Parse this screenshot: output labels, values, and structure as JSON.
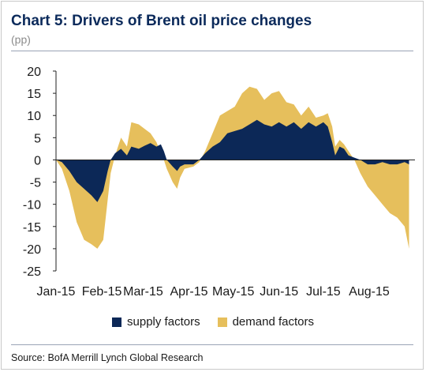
{
  "header": {
    "title": "Chart 5: Drivers of Brent oil price changes",
    "unit": "(pp)"
  },
  "source": "Source: BofA Merrill Lynch Global Research",
  "colors": {
    "supply": "#0c2857",
    "demand": "#e6bf5c",
    "title": "#0b2a5b"
  },
  "chart_data": {
    "type": "area",
    "stacked": true,
    "title": "Chart 5: Drivers of Brent oil price changes",
    "ylabel": "(pp)",
    "ylim": [
      -25,
      20
    ],
    "yticks": [
      20,
      15,
      10,
      5,
      0,
      -5,
      -10,
      -15,
      -20,
      -25
    ],
    "xlim": [
      "2015-01-01",
      "2015-09-01"
    ],
    "xticks": [
      {
        "date": "2015-01-01",
        "label": "Jan-15"
      },
      {
        "date": "2015-02-01",
        "label": "Feb-15"
      },
      {
        "date": "2015-03-01",
        "label": "Mar-15"
      },
      {
        "date": "2015-04-01",
        "label": "Apr-15"
      },
      {
        "date": "2015-05-01",
        "label": "May-15"
      },
      {
        "date": "2015-06-01",
        "label": "Jun-15"
      },
      {
        "date": "2015-07-01",
        "label": "Jul-15"
      },
      {
        "date": "2015-08-01",
        "label": "Aug-15"
      }
    ],
    "grid": false,
    "legend_position": "bottom",
    "series": [
      {
        "name": "supply factors",
        "points": [
          [
            "2015-01-01",
            0
          ],
          [
            "2015-01-05",
            -0.5
          ],
          [
            "2015-01-10",
            -2.5
          ],
          [
            "2015-01-15",
            -5
          ],
          [
            "2015-01-20",
            -6.5
          ],
          [
            "2015-01-25",
            -8
          ],
          [
            "2015-01-29",
            -9.5
          ],
          [
            "2015-02-02",
            -7
          ],
          [
            "2015-02-05",
            -2.5
          ],
          [
            "2015-02-07",
            0
          ],
          [
            "2015-02-10",
            1.5
          ],
          [
            "2015-02-14",
            2.5
          ],
          [
            "2015-02-18",
            1
          ],
          [
            "2015-02-21",
            3
          ],
          [
            "2015-02-26",
            2.5
          ],
          [
            "2015-03-02",
            3.2
          ],
          [
            "2015-03-06",
            3.8
          ],
          [
            "2015-03-10",
            3
          ],
          [
            "2015-03-13",
            3.5
          ],
          [
            "2015-03-15",
            2
          ],
          [
            "2015-03-17",
            0
          ],
          [
            "2015-03-21",
            -1.5
          ],
          [
            "2015-03-24",
            -2.5
          ],
          [
            "2015-03-26",
            -1.5
          ],
          [
            "2015-03-29",
            -1
          ],
          [
            "2015-04-04",
            -1
          ],
          [
            "2015-04-08",
            0
          ],
          [
            "2015-04-12",
            1.5
          ],
          [
            "2015-04-17",
            3
          ],
          [
            "2015-04-22",
            4
          ],
          [
            "2015-04-27",
            6
          ],
          [
            "2015-05-02",
            6.5
          ],
          [
            "2015-05-07",
            7
          ],
          [
            "2015-05-12",
            8
          ],
          [
            "2015-05-17",
            9
          ],
          [
            "2015-05-22",
            8
          ],
          [
            "2015-05-27",
            7.5
          ],
          [
            "2015-06-01",
            8.5
          ],
          [
            "2015-06-06",
            7.5
          ],
          [
            "2015-06-11",
            8.5
          ],
          [
            "2015-06-16",
            7
          ],
          [
            "2015-06-21",
            8.5
          ],
          [
            "2015-06-26",
            7.5
          ],
          [
            "2015-07-01",
            8.5
          ],
          [
            "2015-07-04",
            7.5
          ],
          [
            "2015-07-07",
            4
          ],
          [
            "2015-07-09",
            1
          ],
          [
            "2015-07-12",
            3
          ],
          [
            "2015-07-15",
            2.5
          ],
          [
            "2015-07-18",
            1
          ],
          [
            "2015-07-22",
            0.5
          ],
          [
            "2015-07-26",
            0
          ],
          [
            "2015-07-31",
            -1
          ],
          [
            "2015-08-05",
            -1
          ],
          [
            "2015-08-10",
            -0.5
          ],
          [
            "2015-08-15",
            -1
          ],
          [
            "2015-08-20",
            -1
          ],
          [
            "2015-08-25",
            -0.5
          ],
          [
            "2015-08-28",
            -1
          ]
        ]
      },
      {
        "name": "demand factors",
        "points": [
          [
            "2015-01-01",
            0
          ],
          [
            "2015-01-05",
            -2
          ],
          [
            "2015-01-10",
            -7
          ],
          [
            "2015-01-15",
            -14
          ],
          [
            "2015-01-20",
            -18
          ],
          [
            "2015-01-25",
            -19
          ],
          [
            "2015-01-29",
            -20
          ],
          [
            "2015-02-02",
            -18
          ],
          [
            "2015-02-05",
            -9
          ],
          [
            "2015-02-07",
            -3
          ],
          [
            "2015-02-10",
            1
          ],
          [
            "2015-02-14",
            5
          ],
          [
            "2015-02-18",
            3
          ],
          [
            "2015-02-21",
            8.5
          ],
          [
            "2015-02-26",
            8
          ],
          [
            "2015-03-02",
            7
          ],
          [
            "2015-03-06",
            6
          ],
          [
            "2015-03-10",
            4
          ],
          [
            "2015-03-13",
            1.5
          ],
          [
            "2015-03-15",
            0
          ],
          [
            "2015-03-17",
            -2
          ],
          [
            "2015-03-21",
            -5
          ],
          [
            "2015-03-24",
            -6.5
          ],
          [
            "2015-03-26",
            -4
          ],
          [
            "2015-03-29",
            -2
          ],
          [
            "2015-04-04",
            -1.5
          ],
          [
            "2015-04-08",
            -0.5
          ],
          [
            "2015-04-12",
            2
          ],
          [
            "2015-04-17",
            6
          ],
          [
            "2015-04-22",
            10
          ],
          [
            "2015-04-27",
            11
          ],
          [
            "2015-05-02",
            12
          ],
          [
            "2015-05-07",
            15
          ],
          [
            "2015-05-12",
            16.5
          ],
          [
            "2015-05-17",
            16
          ],
          [
            "2015-05-22",
            13.5
          ],
          [
            "2015-05-27",
            15
          ],
          [
            "2015-06-01",
            15.5
          ],
          [
            "2015-06-06",
            13
          ],
          [
            "2015-06-11",
            12.5
          ],
          [
            "2015-06-16",
            10
          ],
          [
            "2015-06-21",
            12
          ],
          [
            "2015-06-26",
            9.5
          ],
          [
            "2015-07-01",
            10
          ],
          [
            "2015-07-04",
            10.5
          ],
          [
            "2015-07-07",
            7.5
          ],
          [
            "2015-07-09",
            3
          ],
          [
            "2015-07-12",
            4.5
          ],
          [
            "2015-07-15",
            3.5
          ],
          [
            "2015-07-18",
            2
          ],
          [
            "2015-07-22",
            0
          ],
          [
            "2015-07-26",
            -3
          ],
          [
            "2015-07-31",
            -6
          ],
          [
            "2015-08-05",
            -8
          ],
          [
            "2015-08-10",
            -10
          ],
          [
            "2015-08-15",
            -12
          ],
          [
            "2015-08-20",
            -13
          ],
          [
            "2015-08-25",
            -15
          ],
          [
            "2015-08-28",
            -20
          ]
        ]
      }
    ]
  }
}
